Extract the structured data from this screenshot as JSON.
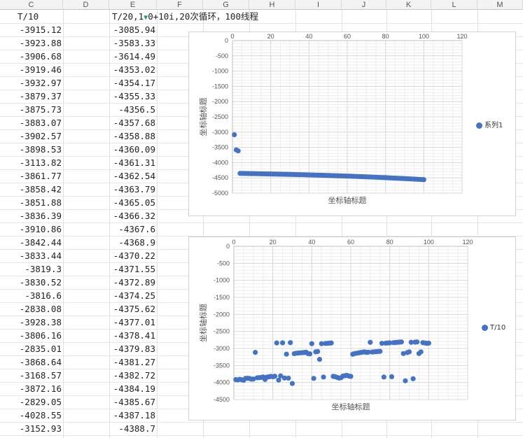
{
  "spreadsheet": {
    "columns": [
      "C",
      "D",
      "E",
      "F",
      "G",
      "H",
      "I",
      "J",
      "K",
      "L",
      "M"
    ],
    "col_c_header": "T/10",
    "col_e_header": "T/20,1",
    "col_e_header_rest": "0+10i,20次循环，100线程",
    "col_c_values": [
      "-3915.12",
      "-3923.88",
      "-3906.68",
      "-3919.46",
      "-3932.97",
      "-3879.37",
      "-3875.73",
      "-3883.07",
      "-3902.57",
      "-3898.53",
      "-3113.82",
      "-3861.77",
      "-3858.42",
      "-3851.88",
      "-3836.39",
      "-3910.86",
      "-3842.44",
      "-3833.44",
      "-3819.3",
      "-3830.52",
      "-3816.6",
      "-2838.08",
      "-3928.38",
      "-3806.16",
      "-2835.01",
      "-3868.64",
      "-3168.57",
      "-3872.16",
      "-2829.05",
      "-4028.55",
      "-3152.93"
    ],
    "col_e_values": [
      "-3085.94",
      "-3583.33",
      "-3614.49",
      "-4353.02",
      "-4354.17",
      "-4355.33",
      "-4356.5",
      "-4357.68",
      "-4358.88",
      "-4360.09",
      "-4361.31",
      "-4362.54",
      "-4363.79",
      "-4365.05",
      "-4366.32",
      "-4367.6",
      "-4368.9",
      "-4370.22",
      "-4371.55",
      "-4372.89",
      "-4374.25",
      "-4375.62",
      "-4377.01",
      "-4378.41",
      "-4379.83",
      "-4381.27",
      "-4382.72",
      "-4384.19",
      "-4385.67",
      "-4387.18",
      "-4388.7"
    ]
  },
  "chart_data": [
    {
      "type": "scatter",
      "title": "",
      "xlabel": "坐标轴标题",
      "ylabel": "坐标轴标题",
      "xlim": [
        0,
        120
      ],
      "ylim": [
        -5000,
        0
      ],
      "xticks": [
        0,
        20,
        40,
        60,
        80,
        100,
        120
      ],
      "yticks": [
        0,
        -500,
        -1000,
        -1500,
        -2000,
        -2500,
        -3000,
        -3500,
        -4000,
        -4500,
        -5000
      ],
      "grid": true,
      "legend_position": "right",
      "series": [
        {
          "name": "系列1",
          "color": "#4472c4",
          "x": [
            1,
            2,
            3,
            4,
            5,
            6,
            7,
            8,
            9,
            10,
            11,
            12,
            13,
            14,
            15,
            16,
            17,
            18,
            19,
            20,
            21,
            22,
            23,
            24,
            25,
            26,
            27,
            28,
            29,
            30,
            31,
            32,
            33,
            34,
            35,
            36,
            37,
            38,
            39,
            40,
            41,
            42,
            43,
            44,
            45,
            46,
            47,
            48,
            49,
            50,
            51,
            52,
            53,
            54,
            55,
            56,
            57,
            58,
            59,
            60,
            61,
            62,
            63,
            64,
            65,
            66,
            67,
            68,
            69,
            70,
            71,
            72,
            73,
            74,
            75,
            76,
            77,
            78,
            79,
            80,
            81,
            82,
            83,
            84,
            85,
            86,
            87,
            88,
            89,
            90,
            91,
            92,
            93,
            94,
            95,
            96,
            97,
            98,
            99,
            100
          ],
          "y": [
            -3085.94,
            -3583.33,
            -3614.49,
            -4353.02,
            -4354.17,
            -4355.33,
            -4356.5,
            -4357.68,
            -4358.88,
            -4360.09,
            -4361.31,
            -4362.54,
            -4363.79,
            -4365.05,
            -4366.32,
            -4367.6,
            -4368.9,
            -4370.22,
            -4371.55,
            -4372.89,
            -4374.25,
            -4375.62,
            -4377.01,
            -4378.41,
            -4379.83,
            -4381.27,
            -4382.72,
            -4384.19,
            -4385.67,
            -4387.18,
            -4388.7,
            -4390.2,
            -4391.8,
            -4393.4,
            -4395.0,
            -4396.6,
            -4398.2,
            -4399.9,
            -4401.6,
            -4403.3,
            -4405.0,
            -4406.7,
            -4408.5,
            -4410.3,
            -4412.1,
            -4413.9,
            -4415.8,
            -4417.7,
            -4419.6,
            -4421.5,
            -4423.5,
            -4425.5,
            -4427.5,
            -4429.5,
            -4431.6,
            -4433.7,
            -4435.8,
            -4438.0,
            -4440.2,
            -4442.4,
            -4444.6,
            -4446.9,
            -4449.2,
            -4451.5,
            -4453.9,
            -4456.3,
            -4458.7,
            -4461.2,
            -4463.7,
            -4466.2,
            -4468.8,
            -4471.4,
            -4474.0,
            -4476.7,
            -4479.4,
            -4482.1,
            -4484.9,
            -4487.7,
            -4490.5,
            -4493.4,
            -4496.3,
            -4499.2,
            -4502.2,
            -4505.2,
            -4508.3,
            -4511.4,
            -4514.5,
            -4517.7,
            -4520.9,
            -4524.2,
            -4527.5,
            -4530.8,
            -4534.2,
            -4537.6,
            -4541.1,
            -4544.6,
            -4548.1,
            -4551.7,
            -4555.3,
            -4559.0
          ]
        }
      ]
    },
    {
      "type": "scatter",
      "title": "",
      "xlabel": "坐标轴标题",
      "ylabel": "坐标轴标题",
      "xlim": [
        0,
        120
      ],
      "ylim": [
        -4500,
        0
      ],
      "xticks": [
        0,
        20,
        40,
        60,
        80,
        100,
        120
      ],
      "yticks": [
        0,
        -500,
        -1000,
        -1500,
        -2000,
        -2500,
        -3000,
        -3500,
        -4000,
        -4500
      ],
      "grid": true,
      "legend_position": "right",
      "series": [
        {
          "name": "T/10",
          "color": "#4472c4",
          "x": [
            1,
            2,
            3,
            4,
            5,
            6,
            7,
            8,
            9,
            10,
            11,
            12,
            13,
            14,
            15,
            16,
            17,
            18,
            19,
            20,
            21,
            22,
            23,
            24,
            25,
            26,
            27,
            28,
            29,
            30,
            31,
            32,
            33,
            34,
            35,
            36,
            37,
            38,
            39,
            40,
            41,
            42,
            43,
            44,
            45,
            46,
            47,
            48,
            49,
            50,
            51,
            52,
            53,
            54,
            55,
            56,
            57,
            58,
            59,
            60,
            61,
            62,
            63,
            64,
            65,
            66,
            67,
            68,
            69,
            70,
            71,
            72,
            73,
            74,
            75,
            76,
            77,
            78,
            79,
            80,
            81,
            82,
            83,
            84,
            85,
            86,
            87,
            88,
            89,
            90,
            91,
            92,
            93,
            94,
            95,
            96,
            97,
            98,
            99,
            100
          ],
          "y": [
            -3915.12,
            -3923.88,
            -3906.68,
            -3919.46,
            -3932.97,
            -3879.37,
            -3875.73,
            -3883.07,
            -3902.57,
            -3898.53,
            -3113.82,
            -3861.77,
            -3858.42,
            -3851.88,
            -3836.39,
            -3910.86,
            -3842.44,
            -3833.44,
            -3819.3,
            -3830.52,
            -3816.6,
            -2838.08,
            -3928.38,
            -3806.16,
            -2835.01,
            -3868.64,
            -3168.57,
            -3872.16,
            -2829.05,
            -4028.55,
            -3152.93,
            -3140,
            -3135,
            -3130,
            -3125,
            -3120,
            -3110,
            -3150,
            -3160,
            -2860,
            -3880,
            -3100,
            -3090,
            -3320,
            -2860,
            -3840,
            -2855,
            -2850,
            -2845,
            -2840,
            -3820,
            -3830,
            -3850,
            -3870,
            -3860,
            -3810,
            -3800,
            -3790,
            -3810,
            -3820,
            -3170,
            -3150,
            -3140,
            -3130,
            -3120,
            -3110,
            -3100,
            -3115,
            -3110,
            -2820,
            -3105,
            -3100,
            -3095,
            -3090,
            -3085,
            -2850,
            -3840,
            -2845,
            -2840,
            -2835,
            -3830,
            -2830,
            -2825,
            -2820,
            -2815,
            -2810,
            -3150,
            -3950,
            -3120,
            -3100,
            -2820,
            -3890,
            -2815,
            -2810,
            -3150,
            -3100,
            -2830,
            -2840,
            -2850,
            -2845
          ]
        }
      ]
    }
  ]
}
